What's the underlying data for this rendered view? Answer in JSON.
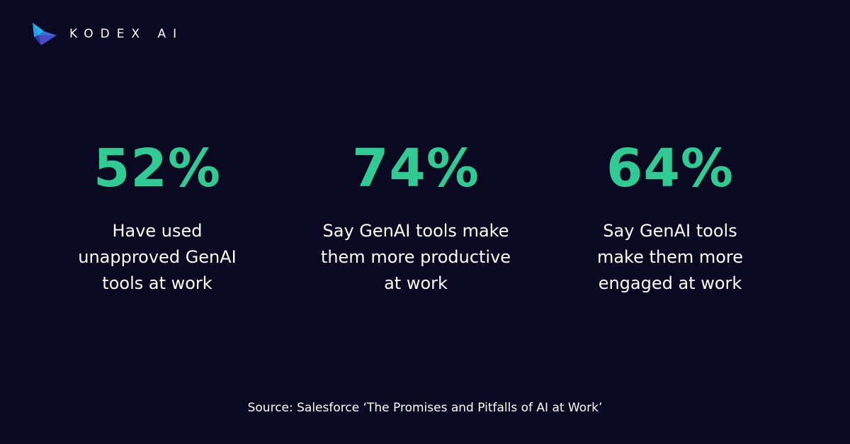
{
  "brand": {
    "name": "KODEX AI",
    "logo_icon": "kodex-origami-bird-icon",
    "logo_colors": [
      "#1fb4f0",
      "#2a7fe0",
      "#3b4cc8",
      "#5a3bb8"
    ]
  },
  "stats": [
    {
      "value": "52%",
      "description": "Have used unapproved GenAI tools at work"
    },
    {
      "value": "74%",
      "description": "Say GenAI tools make them more productive at work"
    },
    {
      "value": "64%",
      "description": "Say GenAI tools make them more engaged at work"
    }
  ],
  "source": "Source: Salesforce ‘The Promises and Pitfalls of AI at Work’",
  "colors": {
    "background": "#0b0821",
    "accent": "#2fcb93",
    "text": "#ffffff"
  }
}
